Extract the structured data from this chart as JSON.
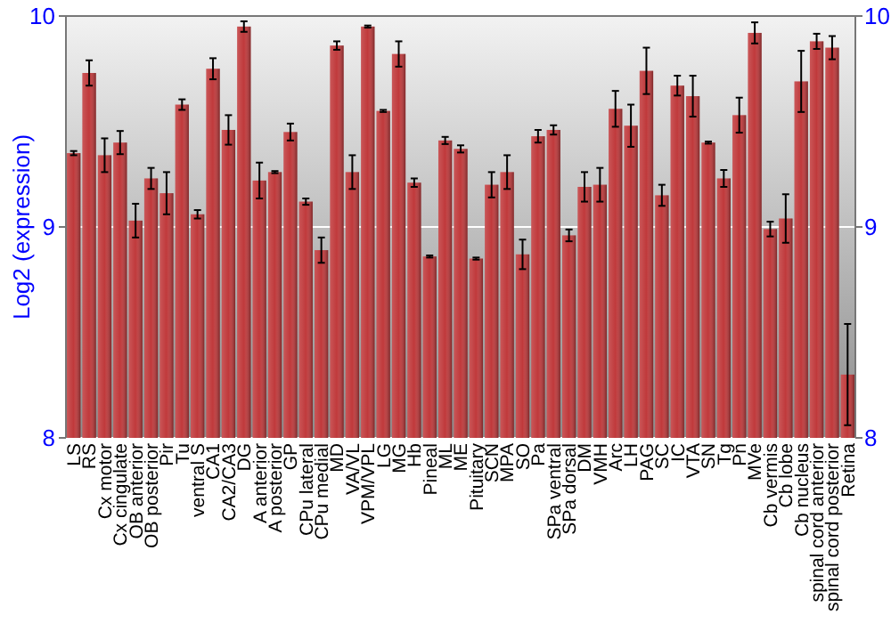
{
  "chart_data": {
    "type": "bar",
    "ylabel": "Log2 (expression)",
    "categories": [
      "LS",
      "RS",
      "Cx motor",
      "Cx cingulate",
      "OB anterior",
      "OB posterior",
      "Pir",
      "Tu",
      "ventral S",
      "CA1",
      "CA2/CA3",
      "DG",
      "A anterior",
      "A posterior",
      "GP",
      "CPu lateral",
      "CPu medial",
      "MD",
      "VA/VL",
      "VPM/VPL",
      "LG",
      "MG",
      "Hb",
      "Pineal",
      "ML",
      "ME",
      "Pituitary",
      "SCN",
      "MPA",
      "SO",
      "Pa",
      "SPa ventral",
      "SPa dorsal",
      "DM",
      "VMH",
      "Arc",
      "LH",
      "PAG",
      "SC",
      "IC",
      "VTA",
      "SN",
      "Tg",
      "Pn",
      "MVe",
      "Cb vermis",
      "Cb lobe",
      "Cb nucleus",
      "spinal cord anterior",
      "spinal cord posterior",
      "Retina"
    ],
    "values": [
      9.35,
      9.73,
      9.34,
      9.4,
      9.03,
      9.23,
      9.16,
      9.58,
      9.06,
      9.75,
      9.46,
      9.95,
      9.22,
      9.26,
      9.45,
      9.12,
      8.89,
      9.86,
      9.26,
      9.95,
      9.55,
      9.82,
      9.21,
      8.86,
      9.41,
      9.37,
      8.85,
      9.2,
      9.26,
      8.87,
      9.43,
      9.46,
      8.96,
      9.19,
      9.2,
      9.56,
      9.48,
      9.74,
      9.15,
      9.67,
      9.62,
      9.4,
      9.23,
      9.53,
      9.92,
      8.99,
      9.04,
      9.69,
      9.88,
      9.85,
      8.3
    ],
    "errors": [
      0.01,
      0.06,
      0.08,
      0.055,
      0.08,
      0.05,
      0.1,
      0.025,
      0.02,
      0.05,
      0.07,
      0.025,
      0.085,
      0.005,
      0.04,
      0.015,
      0.06,
      0.02,
      0.08,
      0.005,
      0.005,
      0.06,
      0.02,
      0.005,
      0.017,
      0.017,
      0.005,
      0.06,
      0.08,
      0.07,
      0.03,
      0.022,
      0.028,
      0.07,
      0.08,
      0.085,
      0.1,
      0.11,
      0.05,
      0.047,
      0.097,
      0.005,
      0.04,
      0.083,
      0.05,
      0.035,
      0.115,
      0.145,
      0.036,
      0.055,
      0.24
    ],
    "color": "#c0393b",
    "ylim": [
      8,
      10
    ],
    "yticks": [
      8,
      9,
      10
    ],
    "y2lim": [
      8,
      10
    ],
    "y2ticks": [
      8,
      9,
      10
    ],
    "grid": "y"
  }
}
